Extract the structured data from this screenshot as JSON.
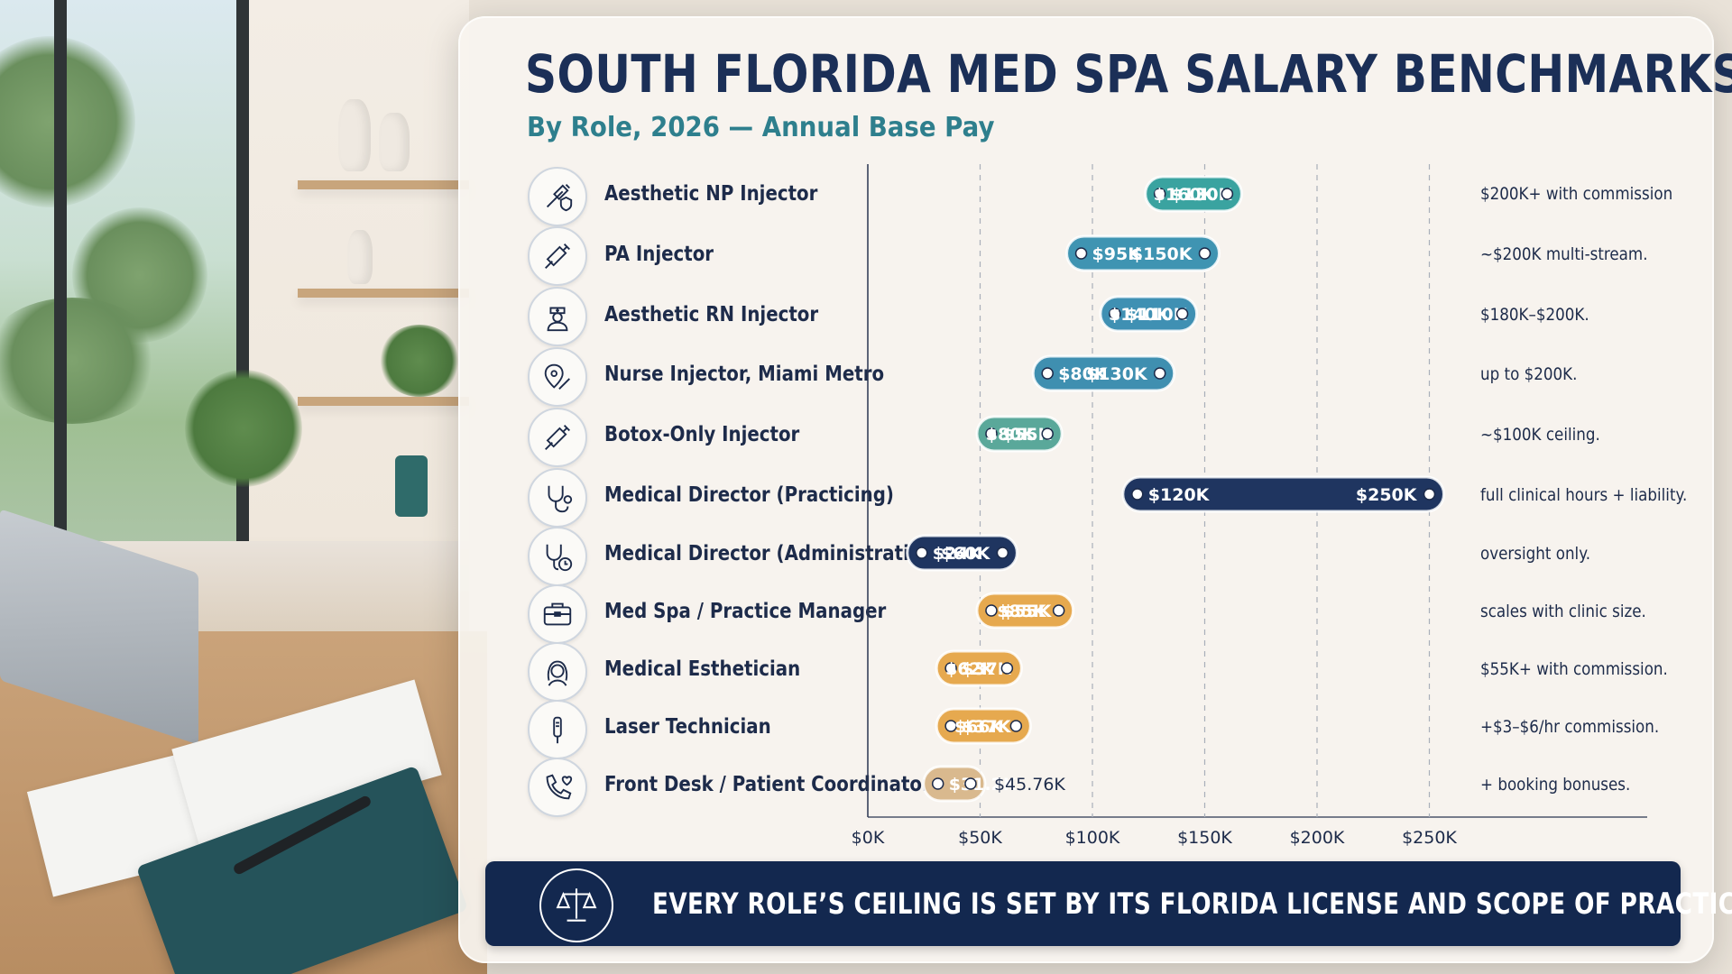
{
  "chart_data": {
    "type": "bar",
    "title": "SOUTH FLORIDA MED SPA SALARY BENCHMARKS",
    "subtitle": "By Role, 2026 — Annual Base Pay",
    "x_ticks": [
      "$0K",
      "$50K",
      "$100K",
      "$150K",
      "$200K",
      "$250K"
    ],
    "xlim": [
      0,
      260
    ],
    "grid": "vertical dashed at 50K intervals",
    "rows": [
      {
        "role": "Aesthetic NP Injector",
        "icon": "syringe-shield-icon",
        "low": 130,
        "high": 160,
        "low_label": "$130K",
        "high_label": "$160K",
        "note": "$200K+ with commission",
        "color": "#3aa3a0"
      },
      {
        "role": "PA Injector",
        "icon": "syringe-icon",
        "low": 95,
        "high": 150,
        "low_label": "$95K",
        "high_label": "$150K",
        "note": "~$200K multi-stream.",
        "color": "#3f94b2"
      },
      {
        "role": "Aesthetic RN Injector",
        "icon": "nurse-icon",
        "low": 110,
        "high": 140,
        "low_label": "$110K",
        "high_label": "$140K",
        "note": "$180K–$200K.",
        "color": "#3f90b3"
      },
      {
        "role": "Nurse Injector, Miami Metro",
        "icon": "location-pin-syringe-icon",
        "low": 80,
        "high": 130,
        "low_label": "$80K",
        "high_label": "$130K",
        "note": "up to $200K.",
        "color": "#3f8fb0"
      },
      {
        "role": "Botox-Only Injector",
        "icon": "syringe-icon",
        "low": 55,
        "high": 80,
        "low_label": "$55K",
        "high_label": "$80K",
        "note": "~$100K ceiling.",
        "color": "#5aa89a"
      },
      {
        "role": "Medical Director (Practicing)",
        "icon": "stethoscope-icon",
        "low": 120,
        "high": 250,
        "low_label": "$120K",
        "high_label": "$250K",
        "note": "full clinical hours + liability.",
        "color": "#1f3560"
      },
      {
        "role": "Medical Director (Administrative)",
        "icon": "stethoscope-clock-icon",
        "low": 24,
        "high": 60,
        "low_label": "$24K",
        "high_label": "$60K",
        "note": "oversight only.",
        "color": "#1f3560"
      },
      {
        "role": "Med Spa / Practice Manager",
        "icon": "briefcase-icon",
        "low": 55,
        "high": 85,
        "low_label": "$55K",
        "high_label": "$85K",
        "note": "scales with clinic size.",
        "color": "#e6a94f"
      },
      {
        "role": "Medical Esthetician",
        "icon": "woman-face-icon",
        "low": 37,
        "high": 62,
        "low_label": "$37K",
        "high_label": "$62K",
        "note": "$55K+ with commission.",
        "color": "#e6a94f"
      },
      {
        "role": "Laser Technician",
        "icon": "laser-wand-icon",
        "low": 37,
        "high": 66,
        "low_label": "$37K",
        "high_label": "$66K",
        "note": "+$3–$6/hr commission.",
        "color": "#e6a94f"
      },
      {
        "role": "Front Desk / Patient Coordinator",
        "icon": "phone-heart-icon",
        "low": 31.2,
        "high": 45.76,
        "low_label": "$31.2K",
        "high_label": "$45.76K",
        "note": "+ booking bonuses.",
        "color": "#d9b98e"
      }
    ]
  },
  "footer": {
    "banner_text": "EVERY ROLE’S CEILING IS SET BY ITS FLORIDA LICENSE AND SCOPE OF PRACTICE.",
    "icon": "scales-of-justice-icon"
  }
}
